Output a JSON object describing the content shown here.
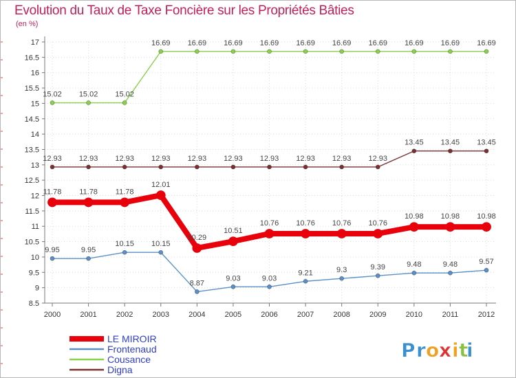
{
  "chart_data": {
    "type": "line",
    "title": "Evolution du Taux de Taxe Foncière sur les Propriétés Bâties",
    "ylabel": "(en %)",
    "xlabel": "",
    "x": [
      "2000",
      "2001",
      "2002",
      "2003",
      "2004",
      "2005",
      "2006",
      "2007",
      "2008",
      "2009",
      "2010",
      "2011",
      "2012"
    ],
    "ylim": [
      8.5,
      17
    ],
    "yticks": [
      "8.5",
      "9",
      "9.5",
      "10",
      "10.5",
      "11",
      "11.5",
      "12",
      "12.5",
      "13",
      "13.5",
      "14",
      "14.5",
      "15",
      "15.5",
      "16",
      "16.5",
      "17"
    ],
    "series": [
      {
        "name": "Frontenaud",
        "color": "#5b8fc8",
        "values": [
          9.95,
          9.95,
          10.15,
          10.15,
          8.87,
          9.03,
          9.03,
          9.21,
          9.3,
          9.39,
          9.48,
          9.48,
          9.57
        ],
        "labels": [
          "9.95",
          "9.95",
          "10.15",
          "10.15",
          "8.87",
          "9.03",
          "9.03",
          "9.21",
          "9.3",
          "9.39",
          "9.48",
          "9.48",
          "9.57"
        ]
      },
      {
        "name": "Cousance",
        "color": "#8ad04a",
        "values": [
          15.02,
          15.02,
          15.02,
          16.69,
          16.69,
          16.69,
          16.69,
          16.69,
          16.69,
          16.69,
          16.69,
          16.69,
          16.69
        ],
        "labels": [
          "15.02",
          "15.02",
          "15.02",
          "16.69",
          "16.69",
          "16.69",
          "16.69",
          "16.69",
          "16.69",
          "16.69",
          "16.69",
          "16.69",
          "16.69"
        ]
      },
      {
        "name": "Digna",
        "color": "#7a3030",
        "values": [
          12.93,
          12.93,
          12.93,
          12.93,
          12.93,
          12.93,
          12.93,
          12.93,
          12.93,
          12.93,
          13.45,
          13.45,
          13.45
        ],
        "labels": [
          "12.93",
          "12.93",
          "12.93",
          "12.93",
          "12.93",
          "12.93",
          "12.93",
          "12.93",
          "12.93",
          "12.93",
          "13.45",
          "13.45",
          "13.45"
        ]
      },
      {
        "name": "LE MIROIR",
        "color": "#e8000b",
        "values": [
          11.78,
          11.78,
          11.78,
          12.01,
          10.29,
          10.51,
          10.76,
          10.76,
          10.76,
          10.76,
          10.98,
          10.98,
          10.98
        ],
        "labels": [
          "11.78",
          "11.78",
          "11.78",
          "12.01",
          "10.29",
          "10.51",
          "10.76",
          "10.76",
          "10.76",
          "10.76",
          "10.98",
          "10.98",
          "10.98"
        ]
      }
    ],
    "legend": [
      "LE MIROIR",
      "Frontenaud",
      "Cousance",
      "Digna"
    ],
    "legend_position": "bottom-left"
  },
  "branding": {
    "logo_letters": [
      "P",
      "r",
      "o",
      "x",
      "i",
      "t",
      "i"
    ],
    "logo_colors": [
      "#3a8fd0",
      "#3a8fd0",
      "#f0a020",
      "#e03030",
      "#f0a020",
      "#8ac040",
      "#3a8fd0"
    ]
  }
}
